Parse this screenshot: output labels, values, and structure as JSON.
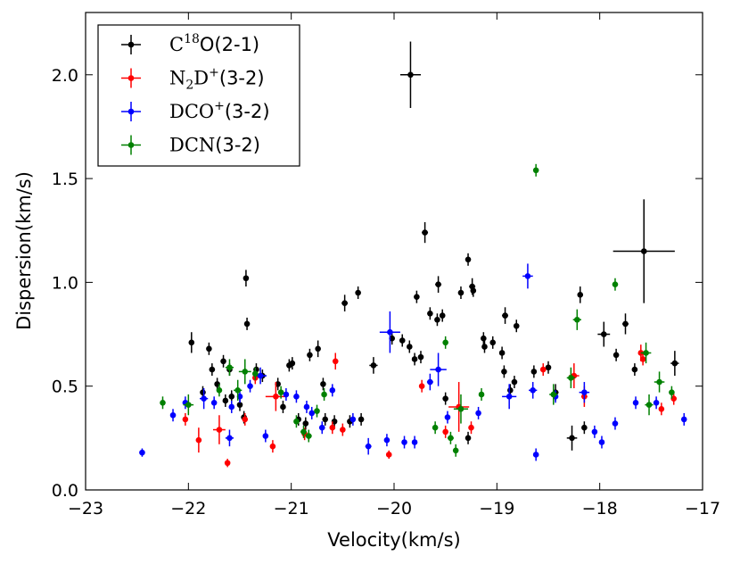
{
  "chart_data": {
    "type": "scatter",
    "title": "",
    "xlabel": "Velocity(km/s)",
    "ylabel": "Dispersion(km/s)",
    "xlim": [
      -23,
      -17
    ],
    "ylim": [
      0,
      2.3
    ],
    "xticks": [
      -23,
      -22,
      -21,
      -20,
      -19,
      -18,
      -17
    ],
    "xtick_labels": [
      "−23",
      "−22",
      "−21",
      "−20",
      "−19",
      "−18",
      "−17"
    ],
    "yticks": [
      0,
      0.5,
      1.0,
      1.5,
      2.0
    ],
    "ytick_labels": [
      "0.0",
      "0.5",
      "1.0",
      "1.5",
      "2.0"
    ],
    "grid": false,
    "legend_position": "top-left",
    "series": [
      {
        "name": "C18O(2-1)",
        "legend": {
          "base": "C",
          "sup": "18",
          "rest": "O(2-1)"
        },
        "color": "#000000",
        "points": [
          [
            -21.97,
            0.71,
            0.02,
            0.05
          ],
          [
            -21.86,
            0.47,
            0.02,
            0.03
          ],
          [
            -21.8,
            0.68,
            0.02,
            0.03
          ],
          [
            -21.77,
            0.58,
            0.02,
            0.03
          ],
          [
            -21.72,
            0.51,
            0.02,
            0.03
          ],
          [
            -21.66,
            0.62,
            0.02,
            0.03
          ],
          [
            -21.64,
            0.43,
            0.02,
            0.03
          ],
          [
            -21.6,
            0.58,
            0.02,
            0.03
          ],
          [
            -21.58,
            0.45,
            0.02,
            0.03
          ],
          [
            -21.5,
            0.41,
            0.02,
            0.03
          ],
          [
            -21.46,
            0.35,
            0.02,
            0.03
          ],
          [
            -21.44,
            1.02,
            0.02,
            0.04
          ],
          [
            -21.43,
            0.8,
            0.02,
            0.03
          ],
          [
            -21.34,
            0.58,
            0.02,
            0.03
          ],
          [
            -21.28,
            0.55,
            0.02,
            0.03
          ],
          [
            -21.13,
            0.51,
            0.02,
            0.03
          ],
          [
            -21.08,
            0.4,
            0.02,
            0.03
          ],
          [
            -21.02,
            0.6,
            0.02,
            0.03
          ],
          [
            -20.99,
            0.61,
            0.02,
            0.03
          ],
          [
            -20.93,
            0.34,
            0.02,
            0.03
          ],
          [
            -20.86,
            0.32,
            0.02,
            0.03
          ],
          [
            -20.82,
            0.65,
            0.02,
            0.03
          ],
          [
            -20.74,
            0.68,
            0.02,
            0.04
          ],
          [
            -20.69,
            0.51,
            0.02,
            0.03
          ],
          [
            -20.67,
            0.34,
            0.02,
            0.03
          ],
          [
            -20.58,
            0.33,
            0.02,
            0.03
          ],
          [
            -20.48,
            0.9,
            0.03,
            0.04
          ],
          [
            -20.43,
            0.33,
            0.02,
            0.03
          ],
          [
            -20.35,
            0.95,
            0.02,
            0.03
          ],
          [
            -20.32,
            0.34,
            0.02,
            0.03
          ],
          [
            -20.2,
            0.6,
            0.04,
            0.04
          ],
          [
            -20.02,
            0.73,
            0.02,
            0.03
          ],
          [
            -19.92,
            0.72,
            0.02,
            0.03
          ],
          [
            -19.85,
            0.69,
            0.02,
            0.03
          ],
          [
            -19.84,
            2.0,
            0.1,
            0.16
          ],
          [
            -19.8,
            0.63,
            0.02,
            0.03
          ],
          [
            -19.78,
            0.93,
            0.02,
            0.03
          ],
          [
            -19.74,
            0.64,
            0.02,
            0.03
          ],
          [
            -19.7,
            1.24,
            0.03,
            0.05
          ],
          [
            -19.65,
            0.85,
            0.02,
            0.03
          ],
          [
            -19.58,
            0.82,
            0.02,
            0.03
          ],
          [
            -19.57,
            0.99,
            0.03,
            0.04
          ],
          [
            -19.53,
            0.84,
            0.02,
            0.03
          ],
          [
            -19.5,
            0.44,
            0.02,
            0.03
          ],
          [
            -19.35,
            0.95,
            0.02,
            0.03
          ],
          [
            -19.28,
            0.25,
            0.02,
            0.03
          ],
          [
            -19.28,
            1.11,
            0.02,
            0.03
          ],
          [
            -19.24,
            0.98,
            0.03,
            0.04
          ],
          [
            -19.23,
            0.96,
            0.02,
            0.03
          ],
          [
            -19.13,
            0.73,
            0.02,
            0.03
          ],
          [
            -19.12,
            0.69,
            0.02,
            0.03
          ],
          [
            -19.04,
            0.71,
            0.02,
            0.03
          ],
          [
            -18.95,
            0.66,
            0.02,
            0.03
          ],
          [
            -18.93,
            0.57,
            0.02,
            0.03
          ],
          [
            -18.92,
            0.84,
            0.03,
            0.04
          ],
          [
            -18.87,
            0.48,
            0.02,
            0.03
          ],
          [
            -18.83,
            0.52,
            0.02,
            0.03
          ],
          [
            -18.81,
            0.79,
            0.02,
            0.03
          ],
          [
            -18.64,
            0.57,
            0.02,
            0.03
          ],
          [
            -18.5,
            0.59,
            0.02,
            0.03
          ],
          [
            -18.43,
            0.47,
            0.03,
            0.04
          ],
          [
            -18.27,
            0.25,
            0.05,
            0.06
          ],
          [
            -18.19,
            0.94,
            0.02,
            0.04
          ],
          [
            -18.15,
            0.3,
            0.02,
            0.03
          ],
          [
            -17.96,
            0.75,
            0.06,
            0.06
          ],
          [
            -17.84,
            0.65,
            0.02,
            0.03
          ],
          [
            -17.75,
            0.8,
            0.03,
            0.05
          ],
          [
            -17.66,
            0.58,
            0.02,
            0.03
          ],
          [
            -17.57,
            1.15,
            0.3,
            0.25
          ],
          [
            -17.27,
            0.61,
            0.04,
            0.06
          ]
        ]
      },
      {
        "name": "N2D+(3-2)",
        "legend": {
          "base": "N",
          "sub": "2",
          "mid": "D",
          "sup": "+",
          "rest": "(3-2)"
        },
        "color": "#ff0000",
        "points": [
          [
            -22.03,
            0.34,
            0.02,
            0.03
          ],
          [
            -21.9,
            0.24,
            0.02,
            0.06
          ],
          [
            -21.7,
            0.29,
            0.06,
            0.07
          ],
          [
            -21.62,
            0.13,
            0.02,
            0.02
          ],
          [
            -21.45,
            0.34,
            0.02,
            0.03
          ],
          [
            -21.35,
            0.54,
            0.02,
            0.03
          ],
          [
            -21.18,
            0.21,
            0.02,
            0.03
          ],
          [
            -21.15,
            0.45,
            0.1,
            0.07
          ],
          [
            -20.87,
            0.27,
            0.02,
            0.03
          ],
          [
            -20.6,
            0.3,
            0.02,
            0.03
          ],
          [
            -20.57,
            0.62,
            0.02,
            0.04
          ],
          [
            -20.5,
            0.29,
            0.02,
            0.03
          ],
          [
            -20.05,
            0.17,
            0.02,
            0.02
          ],
          [
            -19.73,
            0.5,
            0.02,
            0.03
          ],
          [
            -19.5,
            0.28,
            0.02,
            0.03
          ],
          [
            -19.37,
            0.4,
            0.1,
            0.12
          ],
          [
            -19.25,
            0.3,
            0.02,
            0.03
          ],
          [
            -18.55,
            0.58,
            0.02,
            0.03
          ],
          [
            -18.25,
            0.55,
            0.05,
            0.06
          ],
          [
            -18.15,
            0.45,
            0.03,
            0.05
          ],
          [
            -17.6,
            0.66,
            0.02,
            0.04
          ],
          [
            -17.58,
            0.63,
            0.02,
            0.03
          ],
          [
            -17.4,
            0.39,
            0.02,
            0.03
          ],
          [
            -17.28,
            0.44,
            0.02,
            0.03
          ]
        ]
      },
      {
        "name": "DCO+(3-2)",
        "legend": {
          "base": "DCO",
          "sup": "+",
          "rest": "(3-2)"
        },
        "color": "#0000ff",
        "points": [
          [
            -22.45,
            0.18,
            0.02,
            0.02
          ],
          [
            -22.15,
            0.36,
            0.02,
            0.03
          ],
          [
            -22.03,
            0.42,
            0.02,
            0.03
          ],
          [
            -21.85,
            0.44,
            0.04,
            0.05
          ],
          [
            -21.75,
            0.42,
            0.02,
            0.03
          ],
          [
            -21.6,
            0.25,
            0.04,
            0.04
          ],
          [
            -21.58,
            0.4,
            0.02,
            0.03
          ],
          [
            -21.5,
            0.45,
            0.02,
            0.03
          ],
          [
            -21.4,
            0.5,
            0.02,
            0.03
          ],
          [
            -21.3,
            0.55,
            0.06,
            0.04
          ],
          [
            -21.25,
            0.26,
            0.02,
            0.03
          ],
          [
            -21.05,
            0.46,
            0.02,
            0.03
          ],
          [
            -20.95,
            0.45,
            0.02,
            0.03
          ],
          [
            -20.85,
            0.4,
            0.02,
            0.03
          ],
          [
            -20.8,
            0.37,
            0.02,
            0.03
          ],
          [
            -20.7,
            0.3,
            0.02,
            0.03
          ],
          [
            -20.6,
            0.48,
            0.02,
            0.03
          ],
          [
            -20.4,
            0.34,
            0.02,
            0.03
          ],
          [
            -20.25,
            0.21,
            0.03,
            0.04
          ],
          [
            -20.07,
            0.24,
            0.02,
            0.03
          ],
          [
            -20.04,
            0.76,
            0.1,
            0.1
          ],
          [
            -19.9,
            0.23,
            0.02,
            0.03
          ],
          [
            -19.8,
            0.23,
            0.02,
            0.03
          ],
          [
            -19.65,
            0.52,
            0.03,
            0.04
          ],
          [
            -19.57,
            0.58,
            0.08,
            0.08
          ],
          [
            -19.48,
            0.35,
            0.02,
            0.03
          ],
          [
            -19.18,
            0.37,
            0.02,
            0.03
          ],
          [
            -18.88,
            0.45,
            0.07,
            0.06
          ],
          [
            -18.7,
            1.03,
            0.05,
            0.06
          ],
          [
            -18.65,
            0.48,
            0.04,
            0.04
          ],
          [
            -18.62,
            0.17,
            0.02,
            0.03
          ],
          [
            -18.43,
            0.45,
            0.02,
            0.03
          ],
          [
            -18.15,
            0.47,
            0.05,
            0.05
          ],
          [
            -18.05,
            0.28,
            0.02,
            0.03
          ],
          [
            -17.98,
            0.23,
            0.02,
            0.03
          ],
          [
            -17.85,
            0.32,
            0.02,
            0.03
          ],
          [
            -17.65,
            0.42,
            0.02,
            0.03
          ],
          [
            -17.45,
            0.42,
            0.02,
            0.03
          ],
          [
            -17.18,
            0.34,
            0.02,
            0.03
          ]
        ]
      },
      {
        "name": "DCN(3-2)",
        "legend": {
          "base": "DCN",
          "rest": "(3-2)"
        },
        "color": "#008000",
        "points": [
          [
            -22.25,
            0.42,
            0.02,
            0.03
          ],
          [
            -22.0,
            0.41,
            0.05,
            0.05
          ],
          [
            -21.7,
            0.48,
            0.02,
            0.03
          ],
          [
            -21.6,
            0.59,
            0.04,
            0.04
          ],
          [
            -21.52,
            0.48,
            0.04,
            0.05
          ],
          [
            -21.45,
            0.57,
            0.06,
            0.06
          ],
          [
            -21.35,
            0.56,
            0.02,
            0.03
          ],
          [
            -21.1,
            0.47,
            0.02,
            0.03
          ],
          [
            -20.95,
            0.33,
            0.02,
            0.03
          ],
          [
            -20.88,
            0.28,
            0.03,
            0.03
          ],
          [
            -20.83,
            0.26,
            0.03,
            0.03
          ],
          [
            -20.75,
            0.38,
            0.02,
            0.03
          ],
          [
            -20.68,
            0.46,
            0.02,
            0.03
          ],
          [
            -19.6,
            0.3,
            0.02,
            0.03
          ],
          [
            -19.5,
            0.71,
            0.02,
            0.03
          ],
          [
            -19.45,
            0.25,
            0.03,
            0.03
          ],
          [
            -19.4,
            0.19,
            0.02,
            0.03
          ],
          [
            -19.35,
            0.39,
            0.07,
            0.07
          ],
          [
            -19.15,
            0.46,
            0.02,
            0.03
          ],
          [
            -18.62,
            1.54,
            0.02,
            0.03
          ],
          [
            -18.45,
            0.46,
            0.04,
            0.05
          ],
          [
            -18.28,
            0.54,
            0.04,
            0.05
          ],
          [
            -18.22,
            0.82,
            0.04,
            0.05
          ],
          [
            -17.85,
            0.99,
            0.02,
            0.03
          ],
          [
            -17.55,
            0.66,
            0.05,
            0.05
          ],
          [
            -17.52,
            0.41,
            0.04,
            0.05
          ],
          [
            -17.42,
            0.52,
            0.05,
            0.05
          ],
          [
            -17.3,
            0.47,
            0.02,
            0.03
          ]
        ]
      }
    ]
  }
}
